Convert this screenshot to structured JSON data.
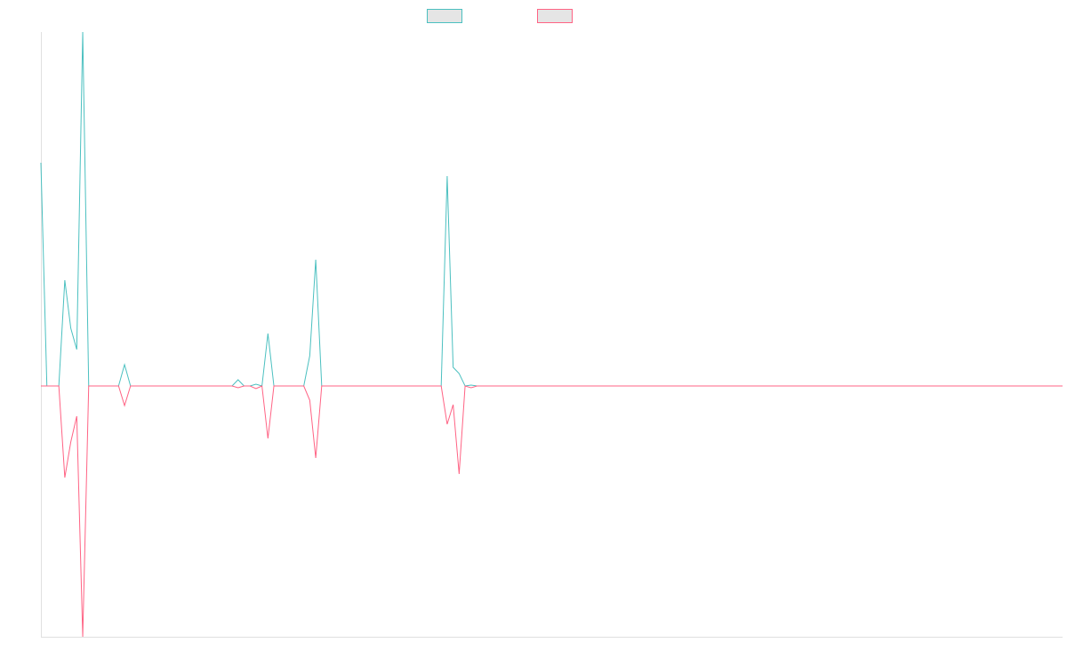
{
  "chart_data": {
    "type": "line",
    "title": "",
    "xlabel": "",
    "ylabel": "",
    "ylim": [
      -28.2,
      39.8
    ],
    "grid": false,
    "legend": "top",
    "series": [
      {
        "color": "#4bc0c0",
        "values": [
          25.1,
          0,
          0,
          0,
          11.9,
          6.5,
          4.1,
          39.8,
          0,
          0,
          0,
          0,
          0,
          0,
          2.4,
          0,
          0,
          0,
          0,
          0,
          0,
          0,
          0,
          0,
          0,
          0,
          0,
          0,
          0,
          0,
          0,
          0,
          0,
          0.7,
          0,
          0,
          0.2,
          0,
          5.9,
          0,
          0,
          0,
          0,
          0,
          0,
          3.4,
          14.2,
          0,
          0,
          0,
          0,
          0,
          0,
          0,
          0,
          0,
          0,
          0,
          0,
          0,
          0,
          0,
          0,
          0,
          0,
          0,
          0,
          0,
          23.6,
          2.1,
          1.4,
          0,
          0.1,
          0,
          0,
          0,
          0,
          0,
          0,
          0,
          0,
          0,
          0,
          0,
          0,
          0,
          0,
          0,
          0,
          0,
          0,
          0,
          0,
          0,
          0,
          0,
          0,
          0,
          0,
          0,
          0,
          0,
          0,
          0,
          0,
          0,
          0,
          0,
          0,
          0,
          0,
          0,
          0,
          0,
          0,
          0,
          0,
          0,
          0,
          0,
          0,
          0,
          0,
          0,
          0,
          0,
          0,
          0,
          0,
          0,
          0,
          0,
          0,
          0,
          0,
          0,
          0,
          0,
          0,
          0,
          0,
          0,
          0,
          0,
          0,
          0,
          0,
          0,
          0,
          0,
          0,
          0,
          0,
          0,
          0,
          0,
          0,
          0,
          0,
          0,
          0,
          0,
          0,
          0,
          0,
          0,
          0,
          0,
          0,
          0,
          0,
          0
        ]
      },
      {
        "color": "#ff6384",
        "values": [
          0,
          0,
          0,
          0,
          -10.3,
          -6.3,
          -3.4,
          -28.2,
          0,
          0,
          0,
          0,
          0,
          0,
          -2.2,
          0,
          0,
          0,
          0,
          0,
          0,
          0,
          0,
          0,
          0,
          0,
          0,
          0,
          0,
          0,
          0,
          0,
          0,
          -0.2,
          0,
          0,
          -0.3,
          0,
          -5.9,
          0,
          0,
          0,
          0,
          0,
          0,
          -1.6,
          -8.1,
          0,
          0,
          0,
          0,
          0,
          0,
          0,
          0,
          0,
          0,
          0,
          0,
          0,
          0,
          0,
          0,
          0,
          0,
          0,
          0,
          0,
          -4.3,
          -2.1,
          -9.9,
          0,
          -0.2,
          0,
          0,
          0,
          0,
          0,
          0,
          0,
          0,
          0,
          0,
          0,
          0,
          0,
          0,
          0,
          0,
          0,
          0,
          0,
          0,
          0,
          0,
          0,
          0,
          0,
          0,
          0,
          0,
          0,
          0,
          0,
          0,
          0,
          0,
          0,
          0,
          0,
          0,
          0,
          0,
          0,
          0,
          0,
          0,
          0,
          0,
          0,
          0,
          0,
          0,
          0,
          0,
          0,
          0,
          0,
          0,
          0,
          0,
          0,
          0,
          0,
          0,
          0,
          0,
          0,
          0,
          0,
          0,
          0,
          0,
          0,
          0,
          0,
          0,
          0,
          0,
          0,
          0,
          0,
          0,
          0,
          0,
          0,
          0,
          0,
          0,
          0,
          0,
          0,
          0,
          0,
          0,
          0,
          0,
          0,
          0,
          0,
          0,
          0
        ]
      }
    ]
  }
}
